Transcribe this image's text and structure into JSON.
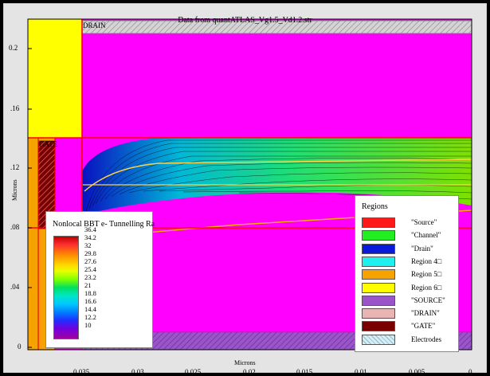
{
  "window": {
    "title": "Data from quantATLAS_Vg1.5_Vd1.2.str"
  },
  "structure": {
    "drain_label": "DRAIN",
    "gate_label": "GATE"
  },
  "axes": {
    "y_label": "Microns",
    "x_label": "Microns",
    "y_ticks": [
      "0.2",
      ".16",
      ".12",
      ".08",
      ".04",
      "0"
    ],
    "x_ticks": [
      "0.035",
      "0.03",
      "0.025",
      "0.02",
      "0.015",
      "0.01",
      "0.005",
      "0"
    ]
  },
  "colorbar": {
    "title": "Nonlocal BBT e- Tunnelling Ra",
    "values": [
      "36.4",
      "34.2",
      "32",
      "29.8",
      "27.6",
      "25.4",
      "23.2",
      "21",
      "18.8",
      "16.6",
      "14.4",
      "12.2",
      "10"
    ]
  },
  "regions_legend": {
    "title": "Regions",
    "items": [
      {
        "label": "\"Source\"",
        "color": "#ff1a1a"
      },
      {
        "label": "\"Channel\"",
        "color": "#22ee22"
      },
      {
        "label": "\"Drain\"",
        "color": "#0a1adb"
      },
      {
        "label": "Region 4□",
        "color": "#1ef0f0"
      },
      {
        "label": "Region 5□",
        "color": "#f6a200"
      },
      {
        "label": "Region 6□",
        "color": "#ffff00"
      },
      {
        "label": "\"SOURCE\"",
        "color": "#9a55c8"
      },
      {
        "label": "\"DRAIN\"",
        "color": "#e8b4b4"
      },
      {
        "label": "\"GATE\"",
        "color": "#7a0000"
      },
      {
        "label": "Electrodes",
        "color": "hatch"
      }
    ]
  },
  "colors": {
    "background_region": "#ff00ff",
    "boundary_line": "#ff0000",
    "source_region": "#ffff00",
    "drain_region": "#f6a200"
  }
}
